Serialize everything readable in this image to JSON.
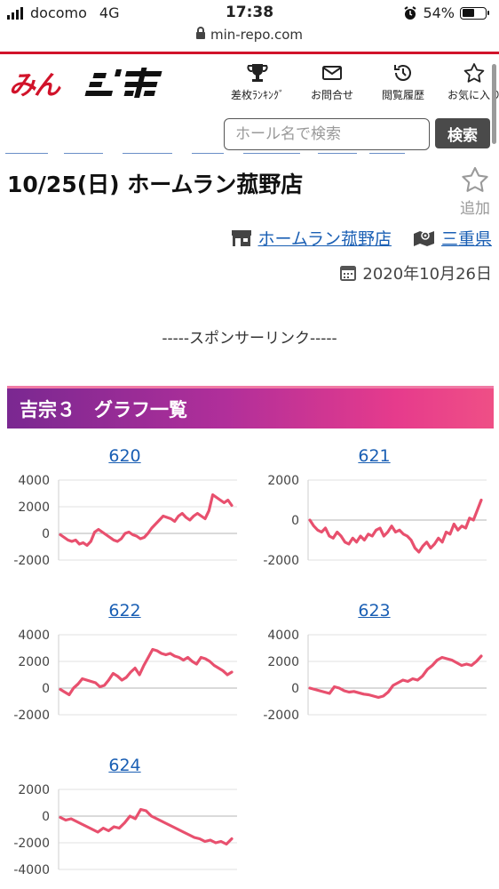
{
  "status": {
    "carrier": "docomo",
    "network": "4G",
    "time": "17:38",
    "battery": "54%",
    "battery_level": 0.54
  },
  "browser": {
    "url": "min-repo.com"
  },
  "header": {
    "logo": "みんレポ",
    "nav": [
      {
        "label": "差枚ﾗﾝｷﾝｸﾞ",
        "icon": "trophy-icon"
      },
      {
        "label": "お問合せ",
        "icon": "mail-icon"
      },
      {
        "label": "閲覧履歴",
        "icon": "history-icon"
      },
      {
        "label": "お気に入り",
        "icon": "star-icon"
      }
    ],
    "search_placeholder": "ホール名で検索",
    "search_button": "検索"
  },
  "page": {
    "title": "10/25(日) ホームラン菰野店",
    "favorite_label": "追加",
    "shop_link": "ホームラン菰野店",
    "prefecture_link": "三重県",
    "date": "2020年10月26日",
    "sponsor": "-----スポンサーリンク-----",
    "section_title": "吉宗３　グラフ一覧"
  },
  "colors": {
    "brand_red": "#d1132a",
    "line": "#e8506e",
    "link": "#1a5fb4"
  },
  "chart_data": [
    {
      "type": "line",
      "title": "620",
      "ylim": [
        -2000,
        4000
      ],
      "yticks": [
        4000,
        2000,
        0,
        -2000
      ],
      "grid": true,
      "series": [
        {
          "values": [
            -100,
            -300,
            -500,
            -600,
            -500,
            -800,
            -700,
            -900,
            -600,
            100,
            300,
            100,
            -100,
            -300,
            -500,
            -600,
            -400,
            0,
            100,
            -100,
            -200,
            -400,
            -300,
            0,
            400,
            700,
            1000,
            1300,
            1200,
            1100,
            900,
            1300,
            1500,
            1200,
            1000,
            1300,
            1500,
            1300,
            1100,
            1700,
            2900,
            2700,
            2500,
            2300,
            2500,
            2100
          ]
        }
      ]
    },
    {
      "type": "line",
      "title": "621",
      "ylim": [
        -2000,
        2000
      ],
      "yticks": [
        2000,
        0,
        -2000
      ],
      "grid": true,
      "series": [
        {
          "values": [
            0,
            -300,
            -500,
            -600,
            -400,
            -800,
            -900,
            -600,
            -800,
            -1100,
            -1200,
            -900,
            -1100,
            -800,
            -1000,
            -700,
            -800,
            -500,
            -400,
            -800,
            -600,
            -300,
            -600,
            -500,
            -700,
            -800,
            -1000,
            -1400,
            -1600,
            -1300,
            -1100,
            -1400,
            -1200,
            -900,
            -1100,
            -600,
            -700,
            -200,
            -500,
            -300,
            -400,
            100,
            0,
            500,
            1000
          ]
        }
      ]
    },
    {
      "type": "line",
      "title": "622",
      "ylim": [
        -2000,
        4000
      ],
      "yticks": [
        4000,
        2000,
        0,
        -2000
      ],
      "grid": true,
      "series": [
        {
          "values": [
            -100,
            -300,
            -500,
            0,
            300,
            700,
            600,
            500,
            400,
            100,
            200,
            600,
            1100,
            900,
            600,
            800,
            1200,
            1500,
            1000,
            1700,
            2300,
            2900,
            2800,
            2600,
            2500,
            2600,
            2400,
            2300,
            2100,
            2300,
            2000,
            1800,
            2300,
            2200,
            2000,
            1700,
            1500,
            1300,
            1000,
            1200
          ]
        }
      ]
    },
    {
      "type": "line",
      "title": "623",
      "ylim": [
        -2000,
        4000
      ],
      "yticks": [
        4000,
        2000,
        0,
        -2000
      ],
      "grid": true,
      "series": [
        {
          "values": [
            0,
            -100,
            -200,
            -300,
            -400,
            100,
            0,
            -200,
            -300,
            -250,
            -350,
            -450,
            -500,
            -600,
            -700,
            -600,
            -300,
            200,
            400,
            600,
            500,
            700,
            600,
            900,
            1400,
            1700,
            2100,
            2300,
            2200,
            2100,
            1900,
            1700,
            1800,
            1700,
            2000,
            2400
          ]
        }
      ]
    },
    {
      "type": "line",
      "title": "624",
      "ylim": [
        -4000,
        2000
      ],
      "yticks": [
        2000,
        0,
        -2000,
        -4000
      ],
      "grid": true,
      "series": [
        {
          "values": [
            -100,
            -300,
            -200,
            -400,
            -600,
            -800,
            -1000,
            -1200,
            -900,
            -1100,
            -800,
            -900,
            -500,
            0,
            -200,
            500,
            400,
            0,
            -200,
            -400,
            -600,
            -800,
            -1000,
            -1200,
            -1400,
            -1600,
            -1700,
            -1900,
            -1800,
            -2000,
            -1900,
            -2100,
            -1700
          ]
        }
      ]
    }
  ]
}
